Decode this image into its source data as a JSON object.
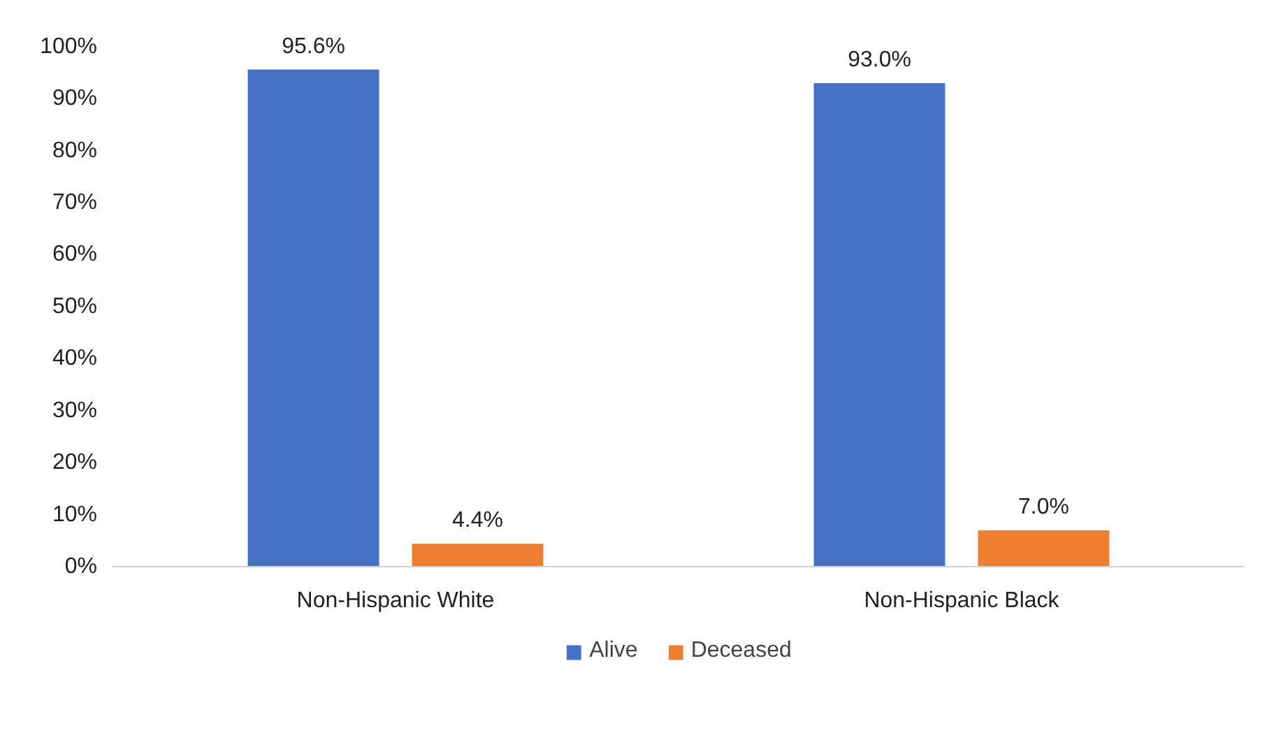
{
  "chart_data": {
    "type": "bar",
    "categories": [
      "Non-Hispanic White",
      "Non-Hispanic Black"
    ],
    "series": [
      {
        "name": "Alive",
        "color": "#4472c4",
        "values": [
          95.6,
          93.0
        ],
        "value_labels": [
          "95.6%",
          "93.0%"
        ]
      },
      {
        "name": "Deceased",
        "color": "#ed7d31",
        "values": [
          4.4,
          7.0
        ],
        "value_labels": [
          "4.4%",
          "7.0%"
        ]
      }
    ],
    "ylim": [
      0,
      100
    ],
    "yticks": [
      {
        "value": 0,
        "label": "0%"
      },
      {
        "value": 10,
        "label": "10%"
      },
      {
        "value": 20,
        "label": "20%"
      },
      {
        "value": 30,
        "label": "30%"
      },
      {
        "value": 40,
        "label": "40%"
      },
      {
        "value": 50,
        "label": "50%"
      },
      {
        "value": 60,
        "label": "60%"
      },
      {
        "value": 70,
        "label": "70%"
      },
      {
        "value": 80,
        "label": "80%"
      },
      {
        "value": 90,
        "label": "90%"
      },
      {
        "value": 100,
        "label": "100%"
      }
    ],
    "grid": false,
    "legend": "bottom"
  }
}
